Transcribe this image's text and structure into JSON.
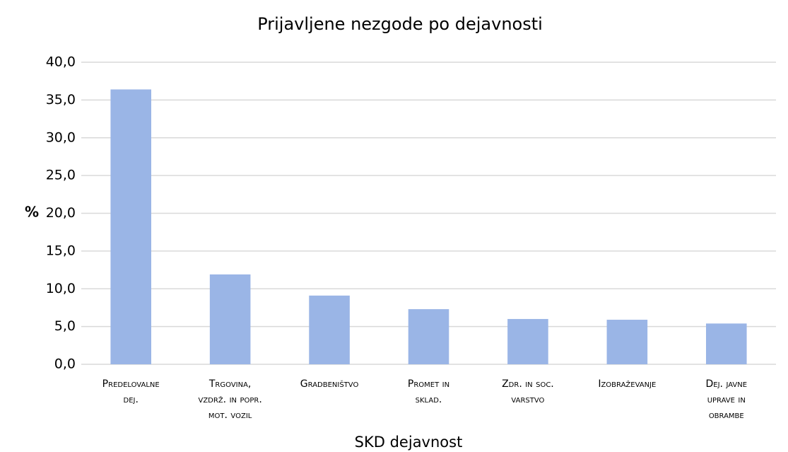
{
  "chart_data": {
    "type": "bar",
    "title": "Prijavljene nezgode po dejavnosti",
    "x_label": "SKD dejavnost",
    "y_label": "%",
    "categories": [
      "Predelovalne dej.",
      "Trgovina, vzdrž. in popr. mot. vozil",
      "Gradbeništvo",
      "Promet in sklad.",
      "Zdr. in soc. varstvo",
      "Izobraževanje",
      "Dej. javne uprave in obrambe"
    ],
    "values": [
      36.4,
      11.9,
      9.1,
      7.3,
      6.0,
      5.9,
      5.4
    ],
    "color": "#9ab5e6",
    "ylim": [
      0,
      40
    ],
    "yticks": [
      {
        "value": 0,
        "label": "0,0"
      },
      {
        "value": 5,
        "label": "5,0"
      },
      {
        "value": 10,
        "label": "10,0"
      },
      {
        "value": 15,
        "label": "15,0"
      },
      {
        "value": 20,
        "label": "20,0"
      },
      {
        "value": 25,
        "label": "25,0"
      },
      {
        "value": 30,
        "label": "30,0"
      },
      {
        "value": 35,
        "label": "35,0"
      },
      {
        "value": 40,
        "label": "40,0"
      }
    ],
    "grid": true
  }
}
